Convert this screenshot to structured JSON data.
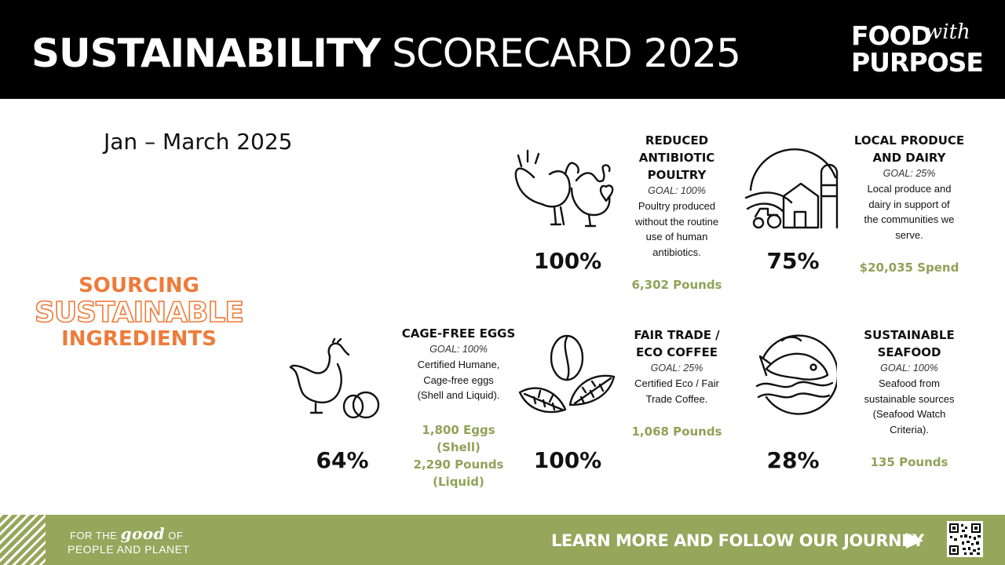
{
  "header": {
    "title_bold": "SUSTAINABILITY",
    "title_light": "SCORECARD 2025",
    "logo": {
      "line1": "FOOD",
      "with": "with",
      "line2": "PURPOSE"
    }
  },
  "period": "Jan – March 2025",
  "section": {
    "line1": "SOURCING",
    "line2": "SUSTAINABLE",
    "line3": "INGREDIENTS"
  },
  "metrics": [
    {
      "title": "REDUCED\nANTIBIOTIC\nPOULTRY",
      "goal": "GOAL: 100%",
      "description": "Poultry produced\nwithout the routine\nuse of human\nantibiotics.",
      "percent": "100%",
      "amount": "6,302 Pounds",
      "icon": "turkey-chicken-icon"
    },
    {
      "title": "LOCAL PRODUCE\nAND DAIRY",
      "goal": "GOAL: 25%",
      "description": "Local produce and\ndairy in support of\nthe communities we\nserve.",
      "percent": "75%",
      "amount": "$20,035 Spend",
      "icon": "farm-barn-icon"
    },
    {
      "title": "CAGE-FREE EGGS",
      "goal": "GOAL: 100%",
      "description": "Certified Humane,\nCage-free eggs\n(Shell and Liquid).",
      "percent": "64%",
      "amount": "1,800 Eggs\n(Shell)\n2,290 Pounds\n(Liquid)",
      "icon": "hen-egg-icon"
    },
    {
      "title": "FAIR TRADE /\nECO COFFEE",
      "goal": "GOAL: 25%",
      "description": "Certified Eco / Fair\nTrade Coffee.",
      "percent": "100%",
      "amount": "1,068 Pounds",
      "icon": "coffee-bean-leaves-icon"
    },
    {
      "title": "SUSTAINABLE\nSEAFOOD",
      "goal": "GOAL: 100%",
      "description": "Seafood from\nsustainable sources\n(Seafood Watch\nCriteria).",
      "percent": "28%",
      "amount": "135 Pounds",
      "icon": "fish-icon"
    }
  ],
  "footer": {
    "tagline_pre": "FOR THE",
    "tagline_good": "good",
    "tagline_post": "OF",
    "tagline_line2": "PEOPLE AND PLANET",
    "cta": "LEARN MORE AND FOLLOW OUR JOURNEY"
  },
  "colors": {
    "header_bg": "#000000",
    "accent_orange": "#ee7b3a",
    "accent_green": "#8fa257",
    "footer_bg": "#96a65b"
  }
}
